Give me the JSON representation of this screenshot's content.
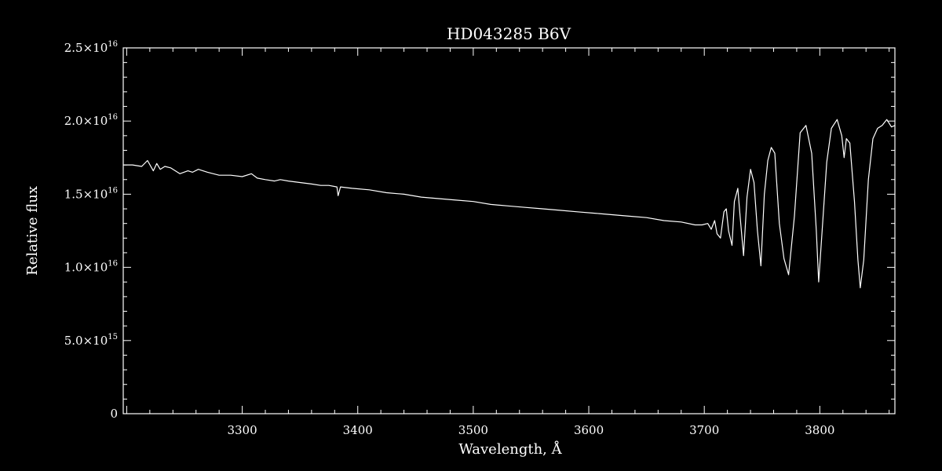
{
  "chart_data": {
    "type": "line",
    "title": "HD043285   B6V",
    "xlabel": "Wavelength, Å",
    "ylabel": "Relative flux",
    "xlim": [
      3197,
      3865
    ],
    "ylim": [
      0,
      2.5e+16
    ],
    "x_ticks": [
      {
        "value": 3300,
        "label": "3300"
      },
      {
        "value": 3400,
        "label": "3400"
      },
      {
        "value": 3500,
        "label": "3500"
      },
      {
        "value": 3600,
        "label": "3600"
      },
      {
        "value": 3700,
        "label": "3700"
      },
      {
        "value": 3800,
        "label": "3800"
      }
    ],
    "y_ticks": [
      {
        "value": 0,
        "mantissa": "0",
        "exponent": ""
      },
      {
        "value": 5000000000000000.0,
        "mantissa": "5.0×10",
        "exponent": "15"
      },
      {
        "value": 1e+16,
        "mantissa": "1.0×10",
        "exponent": "16"
      },
      {
        "value": 1.5e+16,
        "mantissa": "1.5×10",
        "exponent": "16"
      },
      {
        "value": 2e+16,
        "mantissa": "2.0×10",
        "exponent": "16"
      },
      {
        "value": 2.5e+16,
        "mantissa": "2.5×10",
        "exponent": "16"
      }
    ],
    "grid": false,
    "colors": {
      "background": "#000000",
      "foreground": "#ffffff"
    },
    "series": [
      {
        "x": [
          3197,
          3205,
          3213,
          3218,
          3223,
          3226,
          3229,
          3233,
          3238,
          3246,
          3253,
          3257,
          3262,
          3270,
          3280,
          3290,
          3300,
          3308,
          3313,
          3320,
          3328,
          3333,
          3340,
          3350,
          3360,
          3368,
          3375,
          3382,
          3383,
          3385,
          3395,
          3410,
          3425,
          3440,
          3455,
          3470,
          3485,
          3500,
          3515,
          3530,
          3545,
          3560,
          3575,
          3590,
          3605,
          3620,
          3635,
          3650,
          3665,
          3680,
          3692,
          3698,
          3703,
          3706,
          3709,
          3711,
          3714,
          3717,
          3719,
          3721,
          3724,
          3726,
          3729,
          3731,
          3734,
          3737,
          3740,
          3743,
          3746,
          3749,
          3752,
          3755,
          3758,
          3761,
          3765,
          3769,
          3773,
          3778,
          3783,
          3788,
          3793,
          3797,
          3799,
          3802,
          3806,
          3810,
          3815,
          3819,
          3821,
          3823,
          3826,
          3830,
          3833,
          3835,
          3838,
          3842,
          3846,
          3850,
          3854,
          3858,
          3862,
          3865
        ],
        "y": [
          1.7e+16,
          1.7e+16,
          1.69e+16,
          1.73e+16,
          1.66e+16,
          1.71e+16,
          1.67e+16,
          1.69e+16,
          1.68e+16,
          1.64e+16,
          1.66e+16,
          1.65e+16,
          1.67e+16,
          1.65e+16,
          1.63e+16,
          1.63e+16,
          1.62e+16,
          1.64e+16,
          1.61e+16,
          1.6e+16,
          1.59e+16,
          1.6e+16,
          1.59e+16,
          1.58e+16,
          1.57e+16,
          1.56e+16,
          1.56e+16,
          1.55e+16,
          1.49e+16,
          1.55e+16,
          1.54e+16,
          1.53e+16,
          1.51e+16,
          1.5e+16,
          1.48e+16,
          1.47e+16,
          1.46e+16,
          1.45e+16,
          1.43e+16,
          1.42e+16,
          1.41e+16,
          1.4e+16,
          1.39e+16,
          1.38e+16,
          1.37e+16,
          1.36e+16,
          1.35e+16,
          1.34e+16,
          1.32e+16,
          1.31e+16,
          1.29e+16,
          1.29e+16,
          1.3e+16,
          1.26e+16,
          1.32e+16,
          1.23e+16,
          1.2e+16,
          1.38e+16,
          1.4e+16,
          1.25e+16,
          1.15e+16,
          1.45e+16,
          1.54e+16,
          1.35e+16,
          1.08e+16,
          1.48e+16,
          1.67e+16,
          1.58e+16,
          1.25e+16,
          1.01e+16,
          1.5e+16,
          1.73e+16,
          1.82e+16,
          1.78e+16,
          1.3e+16,
          1.06e+16,
          9500000000000000.0,
          1.35e+16,
          1.92e+16,
          1.97e+16,
          1.78e+16,
          1.25e+16,
          9000000000000000.0,
          1.25e+16,
          1.72e+16,
          1.95e+16,
          2.01e+16,
          1.9e+16,
          1.75e+16,
          1.88e+16,
          1.85e+16,
          1.45e+16,
          1.05e+16,
          8600000000000000.0,
          1.05e+16,
          1.6e+16,
          1.88e+16,
          1.95e+16,
          1.97e+16,
          2.01e+16,
          1.96e+16,
          1.97e+16
        ]
      }
    ]
  }
}
